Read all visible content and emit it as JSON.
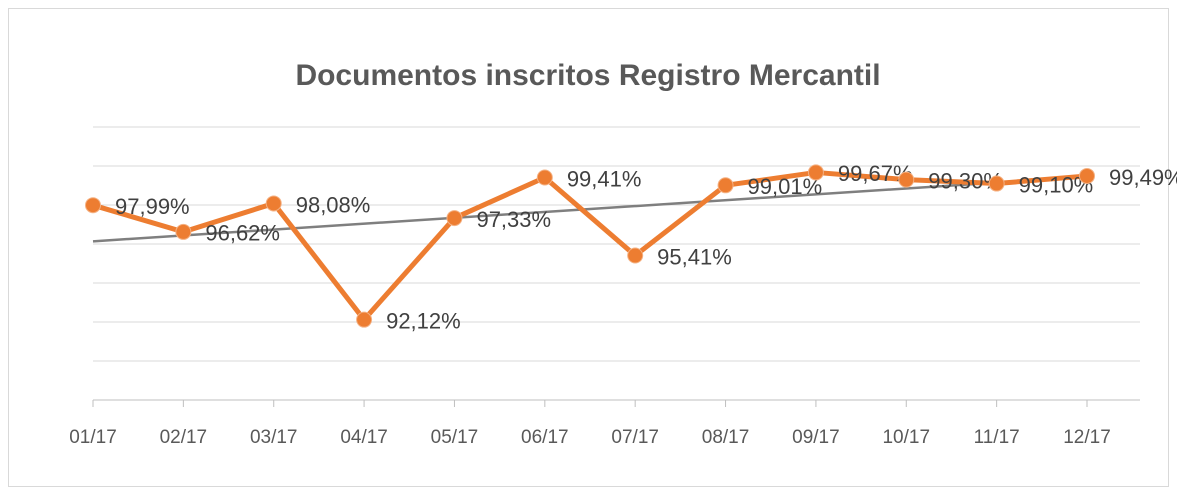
{
  "chart_data": {
    "type": "line",
    "title": "Documentos inscritos Registro Mercantil",
    "categories": [
      "01/17",
      "02/17",
      "03/17",
      "04/17",
      "05/17",
      "06/17",
      "07/17",
      "08/17",
      "09/17",
      "10/17",
      "11/17",
      "12/17"
    ],
    "series": [
      {
        "name": "Documentos inscritos",
        "color": "#ed7d31",
        "values": [
          97.99,
          96.62,
          98.08,
          92.12,
          97.33,
          99.41,
          95.41,
          99.01,
          99.67,
          99.3,
          99.1,
          99.49
        ],
        "value_labels": [
          "97,99%",
          "96,62%",
          "98,08%",
          "92,12%",
          "97,33%",
          "99,41%",
          "95,41%",
          "99,01%",
          "99,67%",
          "99,30%",
          "99,10%",
          "99,49%"
        ]
      }
    ],
    "trendline": {
      "type": "linear",
      "color": "#7f7f7f"
    },
    "ylim": [
      88,
      102
    ],
    "yticks": [
      88,
      90,
      92,
      94,
      96,
      98,
      100,
      102
    ],
    "grid": true
  }
}
